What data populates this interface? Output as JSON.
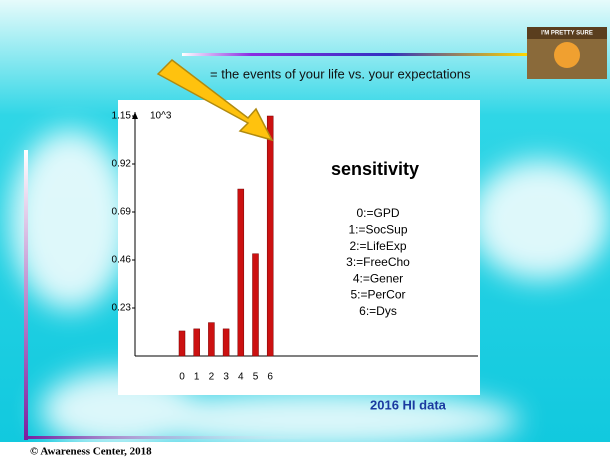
{
  "chart_data": {
    "type": "bar",
    "title": "sensitivity",
    "multiplier_label": "10^3",
    "categories": [
      "0",
      "1",
      "2",
      "3",
      "4",
      "5",
      "6"
    ],
    "values": [
      0.12,
      0.13,
      0.16,
      0.13,
      0.8,
      0.49,
      1.15
    ],
    "color": "#cc1111",
    "ylim": [
      0,
      1.15
    ],
    "yticks": [
      0.23,
      0.46,
      0.69,
      0.92,
      1.15
    ],
    "legend_lines": [
      "0:=GPD",
      "1:=SocSup",
      "2:=LifeExp",
      "3:=FreeCho",
      "4:=Gener",
      "5:=PerCor",
      "6:=Dys"
    ]
  },
  "slide": {
    "caption": "= the events of your life vs. your expectations",
    "source": "2016 HI data",
    "copyright": "© Awareness Center, 2018",
    "image_text": "I'M PRETTY SURE"
  }
}
